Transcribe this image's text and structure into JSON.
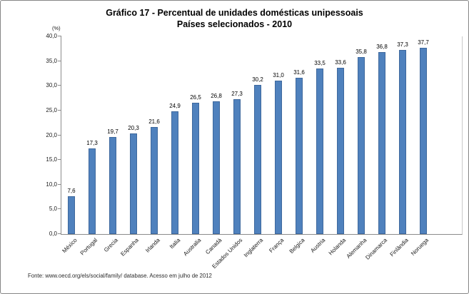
{
  "chart_data": {
    "type": "bar",
    "title": "Gráfico 17 - Percentual de unidades domésticas unipessoais",
    "subtitle": "Países selecionados - 2010",
    "unit_label": "(%)",
    "categories": [
      "México",
      "Portugal",
      "Grecia",
      "Espanha",
      "Irlanda",
      "Italia",
      "Australia",
      "Canadá",
      "Estados Unidos",
      "Inglaterra",
      "França",
      "Belgica",
      "Austria",
      "Holanda",
      "Alemanha",
      "Dinamarca",
      "Finlândia",
      "Noruega"
    ],
    "values": [
      7.6,
      17.3,
      19.7,
      20.3,
      21.6,
      24.9,
      26.5,
      26.8,
      27.3,
      30.2,
      31.0,
      31.6,
      33.5,
      33.6,
      35.8,
      36.8,
      37.3,
      37.7
    ],
    "value_labels": [
      "7,6",
      "17,3",
      "19,7",
      "20,3",
      "21,6",
      "24,9",
      "26,5",
      "26,8",
      "27,3",
      "30,2",
      "31,0",
      "31,6",
      "33,5",
      "33,6",
      "35,8",
      "36,8",
      "37,3",
      "37,7"
    ],
    "ylim": [
      0,
      40
    ],
    "ytick_step": 5,
    "ytick_labels": [
      "0,0",
      "5,0",
      "10,0",
      "15,0",
      "20,0",
      "25,0",
      "30,0",
      "35,0",
      "40,0"
    ],
    "grid": false,
    "legend": "none",
    "bar_color": "#4F81BD",
    "source_note": "Fonte: www.oecd.org/els/social/family/ database. Acesso em julho de 2012"
  }
}
